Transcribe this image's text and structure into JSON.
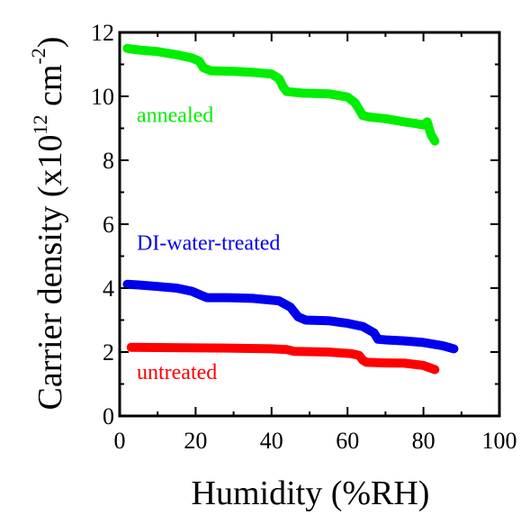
{
  "chart_data": {
    "type": "line",
    "xlabel": "Humidity (%RH)",
    "ylabel": {
      "prefix": "Carrier density (x10",
      "exp1": "12",
      "mid": " cm",
      "exp2": "-2",
      "suffix": ")"
    },
    "xlim": [
      0,
      100
    ],
    "ylim": [
      0,
      12
    ],
    "xticks": [
      0,
      20,
      40,
      60,
      80,
      100
    ],
    "yticks": [
      0,
      2,
      4,
      6,
      8,
      10,
      12
    ],
    "grid": false,
    "series": [
      {
        "name": "annealed",
        "color": "#00ee00",
        "points": [
          [
            2,
            11.5
          ],
          [
            5,
            11.45
          ],
          [
            10,
            11.4
          ],
          [
            15,
            11.3
          ],
          [
            19,
            11.2
          ],
          [
            21,
            11.1
          ],
          [
            22,
            10.9
          ],
          [
            24,
            10.8
          ],
          [
            30,
            10.78
          ],
          [
            35,
            10.75
          ],
          [
            40,
            10.7
          ],
          [
            42,
            10.55
          ],
          [
            43,
            10.3
          ],
          [
            44,
            10.15
          ],
          [
            48,
            10.1
          ],
          [
            55,
            10.08
          ],
          [
            60,
            9.98
          ],
          [
            62,
            9.8
          ],
          [
            63,
            9.6
          ],
          [
            64,
            9.4
          ],
          [
            66,
            9.35
          ],
          [
            70,
            9.3
          ],
          [
            75,
            9.2
          ],
          [
            78,
            9.15
          ],
          [
            80,
            9.1
          ],
          [
            81,
            9.2
          ],
          [
            82,
            8.8
          ],
          [
            83,
            8.6
          ]
        ]
      },
      {
        "name": "DI-water-treated",
        "color": "#0000ee",
        "points": [
          [
            2,
            4.12
          ],
          [
            5,
            4.1
          ],
          [
            10,
            4.05
          ],
          [
            15,
            4.0
          ],
          [
            19,
            3.9
          ],
          [
            21,
            3.8
          ],
          [
            23,
            3.7
          ],
          [
            28,
            3.7
          ],
          [
            35,
            3.68
          ],
          [
            42,
            3.6
          ],
          [
            45,
            3.4
          ],
          [
            47,
            3.1
          ],
          [
            49,
            3.0
          ],
          [
            55,
            2.98
          ],
          [
            60,
            2.9
          ],
          [
            64,
            2.8
          ],
          [
            67,
            2.6
          ],
          [
            68,
            2.4
          ],
          [
            70,
            2.38
          ],
          [
            75,
            2.35
          ],
          [
            80,
            2.3
          ],
          [
            85,
            2.2
          ],
          [
            88,
            2.1
          ]
        ]
      },
      {
        "name": "untreated",
        "color": "#ff0000",
        "points": [
          [
            3,
            2.15
          ],
          [
            10,
            2.14
          ],
          [
            20,
            2.13
          ],
          [
            30,
            2.12
          ],
          [
            40,
            2.1
          ],
          [
            44,
            2.08
          ],
          [
            46,
            2.02
          ],
          [
            55,
            2.0
          ],
          [
            61,
            1.95
          ],
          [
            63,
            1.9
          ],
          [
            64,
            1.75
          ],
          [
            65,
            1.68
          ],
          [
            70,
            1.66
          ],
          [
            75,
            1.65
          ],
          [
            80,
            1.58
          ],
          [
            83,
            1.45
          ]
        ]
      }
    ],
    "annotations": [
      {
        "text": "annealed",
        "x": 4.5,
        "y": 9.2,
        "color": "#00ee00"
      },
      {
        "text": "DI-water-treated",
        "x": 4.5,
        "y": 5.2,
        "color": "#0000ee"
      },
      {
        "text": "untreated",
        "x": 4.5,
        "y": 1.15,
        "color": "#ff0000"
      }
    ]
  }
}
